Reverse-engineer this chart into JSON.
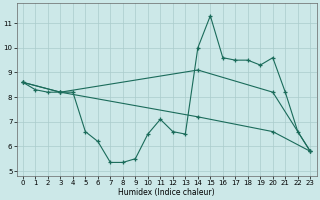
{
  "xlabel": "Humidex (Indice chaleur)",
  "bg_color": "#cce8e8",
  "grid_color": "#aacccc",
  "line_color": "#1a6b5a",
  "xlim": [
    -0.5,
    23.5
  ],
  "ylim": [
    4.8,
    11.8
  ],
  "yticks": [
    5,
    6,
    7,
    8,
    9,
    10,
    11
  ],
  "xticks": [
    0,
    1,
    2,
    3,
    4,
    5,
    6,
    7,
    8,
    9,
    10,
    11,
    12,
    13,
    14,
    15,
    16,
    17,
    18,
    19,
    20,
    21,
    22,
    23
  ],
  "series": [
    {
      "x": [
        0,
        1,
        2,
        3,
        4,
        5,
        6,
        7,
        8,
        9,
        10,
        11,
        12,
        13,
        14,
        15,
        16,
        17,
        18,
        19,
        20,
        21,
        22,
        23
      ],
      "y": [
        8.6,
        8.3,
        8.2,
        8.2,
        8.2,
        6.6,
        6.2,
        5.35,
        5.35,
        5.5,
        6.5,
        7.1,
        6.6,
        6.5,
        10.0,
        11.3,
        9.6,
        9.5,
        9.5,
        9.3,
        9.6,
        8.2,
        6.6,
        5.8
      ]
    },
    {
      "x": [
        0,
        3,
        14,
        20,
        23
      ],
      "y": [
        8.6,
        8.2,
        9.1,
        8.2,
        5.8
      ]
    },
    {
      "x": [
        0,
        3,
        14,
        20,
        23
      ],
      "y": [
        8.6,
        8.2,
        7.2,
        6.6,
        5.8
      ]
    }
  ]
}
